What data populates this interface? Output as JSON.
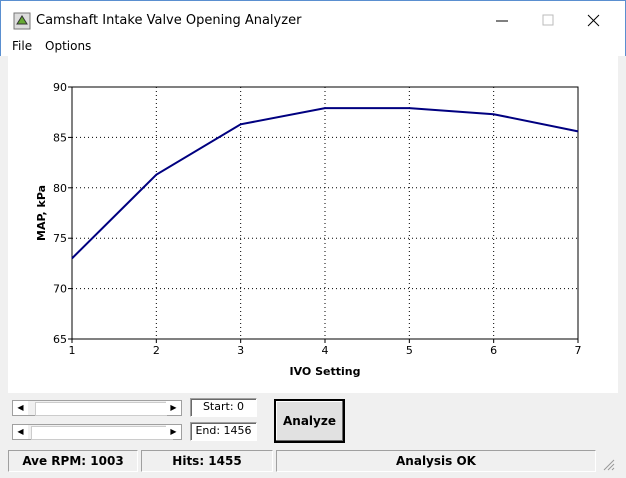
{
  "window": {
    "title": "Camshaft Intake Valve Opening Analyzer"
  },
  "menu": [
    "File",
    "Options"
  ],
  "chart_data": {
    "type": "line",
    "xlabel": "IVO Setting",
    "ylabel": "MAP, kPa",
    "x": [
      1,
      2,
      3,
      4,
      5,
      6,
      7
    ],
    "series": [
      {
        "color": "#000080",
        "values": [
          73,
          81.3,
          86.3,
          87.9,
          87.9,
          87.3,
          85.6
        ]
      }
    ],
    "xlim": [
      1,
      7
    ],
    "ylim": [
      65,
      90
    ],
    "xticks": [
      1,
      2,
      3,
      4,
      5,
      6,
      7
    ],
    "yticks": [
      65,
      70,
      75,
      80,
      85,
      90
    ],
    "grid": true
  },
  "controls": {
    "start": "Start: 0",
    "end": "End: 1456",
    "button": "Analyze"
  },
  "status": [
    "Ave RPM: 1003",
    "Hits: 1455",
    "Analysis OK"
  ]
}
